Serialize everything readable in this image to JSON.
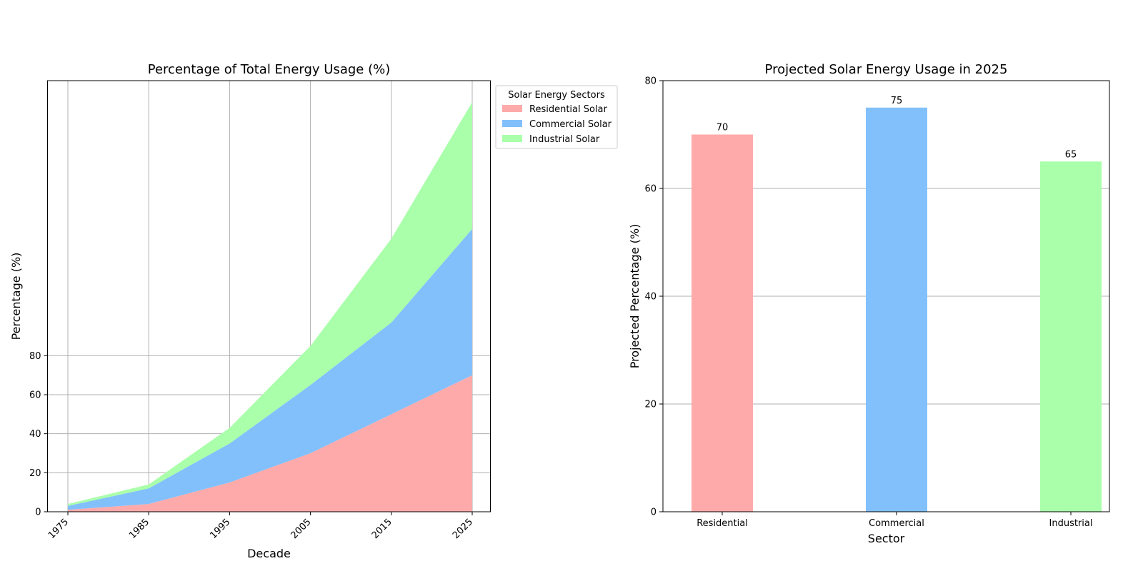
{
  "chart_data": [
    {
      "type": "area",
      "stacked": true,
      "title": "Percentage of Total Energy Usage (%)",
      "xlabel": "Decade",
      "ylabel": "Percentage (%)",
      "x": [
        "1975",
        "1985",
        "1995",
        "2005",
        "2015",
        "2025"
      ],
      "yticks": [
        0,
        20,
        40,
        60,
        80
      ],
      "ylim": [
        0,
        221
      ],
      "grid": true,
      "legend": {
        "title": "Solar Energy Sectors",
        "placement": "outside-top-right"
      },
      "series": [
        {
          "name": "Residential Solar",
          "values": [
            1,
            4,
            15,
            30,
            50,
            70
          ],
          "color": "#ffaaaa"
        },
        {
          "name": "Commercial Solar",
          "values": [
            2,
            8,
            20,
            35,
            47,
            75
          ],
          "color": "#82c0fc"
        },
        {
          "name": "Industrial Solar",
          "values": [
            1,
            2,
            8,
            20,
            43,
            65
          ],
          "color": "#aaffaa"
        }
      ]
    },
    {
      "type": "bar",
      "title": "Projected Solar Energy Usage in 2025",
      "xlabel": "Sector",
      "ylabel": "Projected Percentage (%)",
      "categories": [
        "Residential",
        "Commercial",
        "Industrial"
      ],
      "values": [
        70,
        75,
        65
      ],
      "data_labels": [
        "70",
        "75",
        "65"
      ],
      "colors": [
        "#ffaaaa",
        "#82c0fc",
        "#aaffaa"
      ],
      "yticks": [
        0,
        20,
        40,
        60,
        80
      ],
      "ylim": [
        0,
        80
      ],
      "grid": "y"
    }
  ]
}
